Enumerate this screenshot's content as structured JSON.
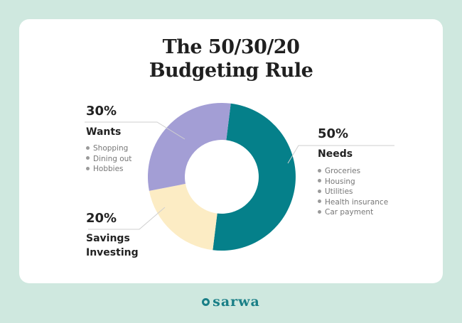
{
  "title_lines": [
    "The 50/30/20",
    "Budgeting Rule"
  ],
  "brand": "sarwa",
  "colors": {
    "background": "#cfe8df",
    "needs": "#05808a",
    "wants": "#a39ed5",
    "savings": "#fcecc4",
    "brand": "#1a7f87"
  },
  "chart_data": {
    "type": "pie",
    "title": "The 50/30/20 Budgeting Rule",
    "slices": [
      {
        "label": "50%",
        "name": "Needs",
        "value": 50,
        "color": "#05808a",
        "items": [
          "Groceries",
          "Housing",
          "Utilities",
          "Health insurance",
          "Car payment"
        ]
      },
      {
        "label": "20%",
        "name": "Savings Investing",
        "value": 20,
        "color": "#fcecc4",
        "items": []
      },
      {
        "label": "30%",
        "name": "Wants",
        "value": 30,
        "color": "#a39ed5",
        "items": [
          "Shopping",
          "Dining out",
          "Hobbies"
        ]
      }
    ]
  },
  "labels": {
    "wants": {
      "pct": "30%",
      "name": "Wants",
      "items": [
        "Shopping",
        "Dining out",
        "Hobbies"
      ]
    },
    "needs": {
      "pct": "50%",
      "name": "Needs",
      "items": [
        "Groceries",
        "Housing",
        "Utilities",
        "Health insurance",
        "Car payment"
      ]
    },
    "savings": {
      "pct": "20%",
      "name_lines": [
        "Savings",
        "Investing"
      ]
    }
  }
}
